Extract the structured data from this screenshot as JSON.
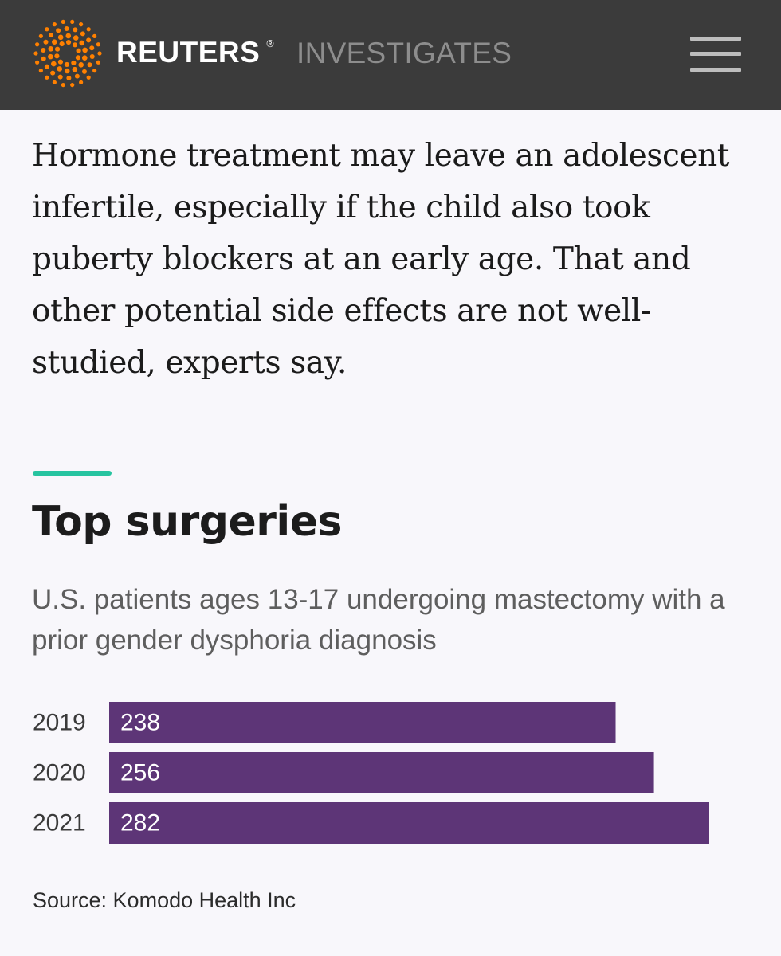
{
  "header": {
    "brand": "REUTERS",
    "registered_mark": "®",
    "section": "INVESTIGATES",
    "brand_color": "#ff8000",
    "background_color": "#3b3b3b",
    "menu_icon": "hamburger-menu-icon"
  },
  "article": {
    "paragraph": "Hormone treatment may leave an adolescent infertile, especially if the child also took puberty blockers at an early age. That and other potential side effects are not well-studied, experts say."
  },
  "graphic": {
    "accent_color": "#27c4a0",
    "bar_color": "#5d3577",
    "source": "Source: Komodo Health Inc"
  },
  "chart_data": {
    "type": "bar",
    "orientation": "horizontal",
    "title": "Top surgeries",
    "subtitle": "U.S. patients ages 13-17 undergoing mastectomy with a prior gender dysphoria diagnosis",
    "categories": [
      "2019",
      "2020",
      "2021"
    ],
    "values": [
      238,
      256,
      282
    ],
    "data_labels": [
      "238",
      "256",
      "282"
    ],
    "xlim": [
      0,
      282
    ],
    "grid": false,
    "legend": "none"
  }
}
